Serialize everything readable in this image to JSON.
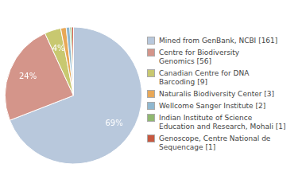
{
  "chart_data": {
    "type": "pie",
    "categories": [
      "Mined from GenBank, NCBI [161]",
      "Centre for Biodiversity\nGenomics [56]",
      "Canadian Centre for DNA\nBarcoding [9]",
      "Naturalis Biodiversity Center [3]",
      "Wellcome Sanger Institute [2]",
      "Indian Institute of Science\nEducation and Research, Mohali [1]",
      "Genoscope, Centre National de\nSequencage [1]"
    ],
    "values": [
      69.1,
      24.03,
      3.86,
      1.29,
      0.86,
      0.43,
      0.43
    ],
    "value_labels": [
      "69%",
      "24%",
      "4%",
      null,
      null,
      null,
      null
    ],
    "colors": [
      "#b8c8dc",
      "#d4958a",
      "#c8c870",
      "#e8a858",
      "#90b8d0",
      "#90b870",
      "#c85840"
    ],
    "data_labels": true,
    "legend": "right"
  }
}
